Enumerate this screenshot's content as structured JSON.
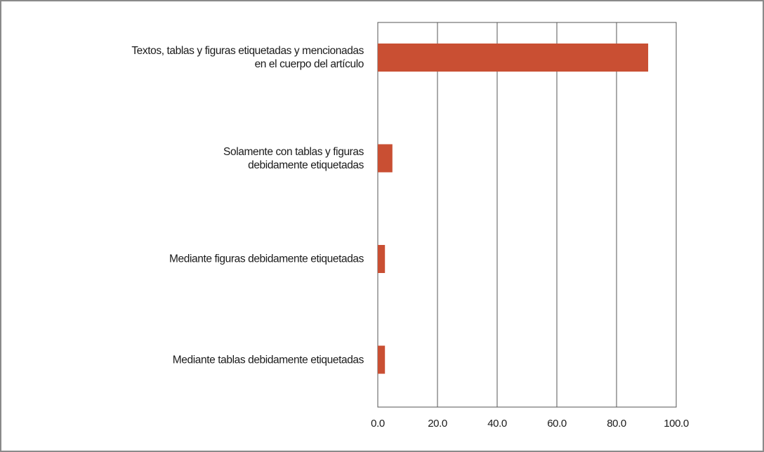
{
  "chart_data": {
    "type": "barh",
    "categories": [
      "Textos, tablas y figuras etiquetadas y mencionadas\nen el cuerpo del artículo",
      "Solamente con tablas y  figuras\ndebidamente etiquetadas",
      "Mediante figuras debidamente etiquetadas",
      "Mediante tablas debidamente etiquetadas"
    ],
    "values": [
      90.6,
      4.9,
      2.4,
      2.4
    ],
    "color": "#c94f33",
    "xlim": [
      0,
      100
    ],
    "xticks": [
      {
        "value": 0,
        "label": "0.0"
      },
      {
        "value": 20,
        "label": "20.0"
      },
      {
        "value": 40,
        "label": "40.0"
      },
      {
        "value": 60,
        "label": "60.0"
      },
      {
        "value": 80,
        "label": "80.0"
      },
      {
        "value": 100,
        "label": "100.0"
      }
    ],
    "grid": true
  }
}
